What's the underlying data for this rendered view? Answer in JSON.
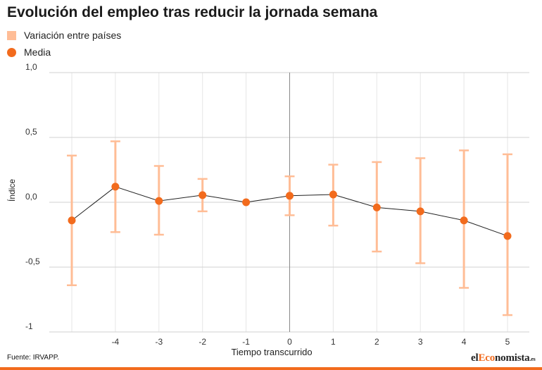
{
  "page": {
    "title": "Evolución del empleo tras reducir la jornada semana",
    "source": "Fuente: IRVAPP.",
    "logo": {
      "part1": "el",
      "part2": "Eco",
      "part3": "nomista",
      "suffix": ".es"
    }
  },
  "colors": {
    "range": "#ffbd96",
    "mean": "#f26b1d",
    "line": "#222222",
    "grid": "#e6e6e6",
    "axis": "#888888",
    "accent_bar": "#f26b1d"
  },
  "chart_data": {
    "type": "line",
    "title": "Evolución del empleo tras reducir la jornada semana",
    "xlabel": "Tiempo transcurrido",
    "ylabel": "Índice",
    "x": [
      -5,
      -4,
      -3,
      -2,
      -1,
      0,
      1,
      2,
      3,
      4,
      5
    ],
    "x_tick_labels": [
      "-4",
      "-3",
      "-2",
      "-1",
      "0",
      "1",
      "2",
      "3",
      "4",
      "5"
    ],
    "y_ticks": [
      1.0,
      0.5,
      0.0,
      -0.5,
      -1
    ],
    "y_tick_labels": [
      "1,0",
      "0,5",
      "0,0",
      "-0,5",
      "-1"
    ],
    "ylim": [
      -1,
      1
    ],
    "xlim": [
      -5.5,
      5.5
    ],
    "grid": true,
    "legend_position": "top-left",
    "series": [
      {
        "name": "Variación entre países",
        "kind": "range",
        "low": [
          -0.64,
          -0.23,
          -0.25,
          -0.07,
          0.0,
          -0.1,
          -0.18,
          -0.38,
          -0.47,
          -0.66,
          -0.87
        ],
        "high": [
          0.36,
          0.47,
          0.28,
          0.18,
          0.0,
          0.2,
          0.29,
          0.31,
          0.34,
          0.4,
          0.37
        ]
      },
      {
        "name": "Media",
        "kind": "mean",
        "values": [
          -0.14,
          0.12,
          0.01,
          0.055,
          0.0,
          0.05,
          0.06,
          -0.04,
          -0.07,
          -0.14,
          -0.26
        ]
      }
    ]
  }
}
